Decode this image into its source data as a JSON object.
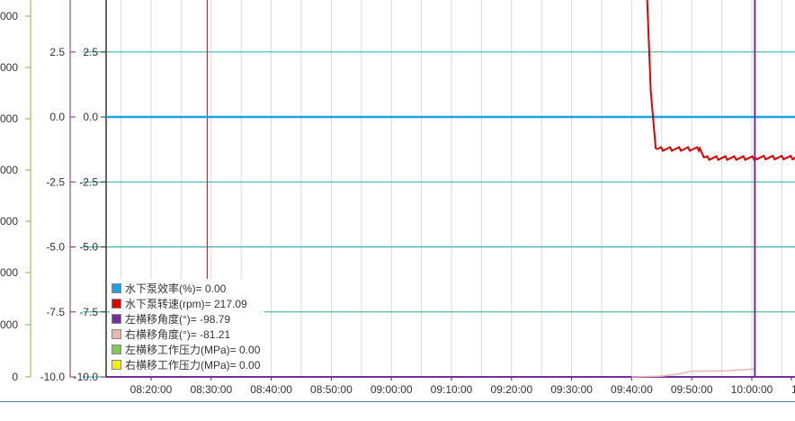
{
  "chart_data": {
    "type": "line",
    "x_ticks": [
      "08:20:00",
      "08:30:00",
      "08:40:00",
      "08:50:00",
      "09:00:00",
      "09:10:00",
      "09:20:00",
      "09:30:00",
      "09:40:00",
      "09:50:00",
      "10:00:00",
      "1"
    ],
    "y_axis_main": {
      "ticks": [
        "2.5",
        "0.0",
        "-2.5",
        "-5.0",
        "-7.5",
        "-10.0"
      ],
      "ylim": [
        -10.0,
        4.5
      ]
    },
    "y_axis_inner": {
      "ticks": [
        "2.5",
        "0.0",
        "-2.5",
        "-5.0",
        "-7.5",
        "-10.0"
      ],
      "color": "#7a2a7a"
    },
    "y_axis_outer": {
      "ticks": [
        "000",
        "000",
        "000",
        "000",
        "000",
        "000",
        "000",
        "0"
      ],
      "color": "#7fbf3f"
    },
    "grid": true,
    "legend_placement": "bottom-left",
    "cursor_x_time": "10:00:30",
    "series": [
      {
        "name": "水下泵效率(%)",
        "legend": "水下泵效率(%)= 0.00",
        "color": "#1aa3e8",
        "x": [
          "08:12:00",
          "10:15:00"
        ],
        "y": [
          0.0,
          0.0
        ]
      },
      {
        "name": "水下泵转速(rpm)",
        "legend": "水下泵转速(rpm)= 217.09",
        "color": "#e00000",
        "x": [
          "09:42:30",
          "09:43:10",
          "09:44:00",
          "09:51:20",
          "09:52:00",
          "10:00:30",
          "10:15:00"
        ],
        "y": [
          5.0,
          1.0,
          -1.2,
          -1.2,
          -1.55,
          -1.55,
          -1.55
        ]
      },
      {
        "name": "左横移角度(°)",
        "legend": "左横移角度(°)= -98.79",
        "color": "#7030a0",
        "x": [
          "08:12:00",
          "10:15:00"
        ],
        "y": [
          -10.0,
          -10.0
        ]
      },
      {
        "name": "右横移角度(°)",
        "legend": "右横移角度(°)= -81.21",
        "color": "#e8b8b0",
        "x": [
          "09:40:00",
          "09:45:00",
          "09:48:00",
          "09:50:00",
          "09:56:00",
          "10:00:30"
        ],
        "y": [
          -10.0,
          -9.97,
          -9.88,
          -9.78,
          -9.76,
          -9.7
        ]
      },
      {
        "name": "左横移工作压力(MPa)",
        "legend": "左横移工作压力(MPa)= 0.00",
        "color": "#80c850",
        "x": [
          "08:12:00",
          "10:15:00"
        ],
        "y": [
          -10.0,
          -10.0
        ]
      },
      {
        "name": "右横移工作压力(MPa)",
        "legend": "右横移工作压力(MPa)= 0.00",
        "color": "#f4f000",
        "x": [
          "08:12:00",
          "10:15:00"
        ],
        "y": [
          -10.0,
          -10.0
        ]
      }
    ]
  }
}
